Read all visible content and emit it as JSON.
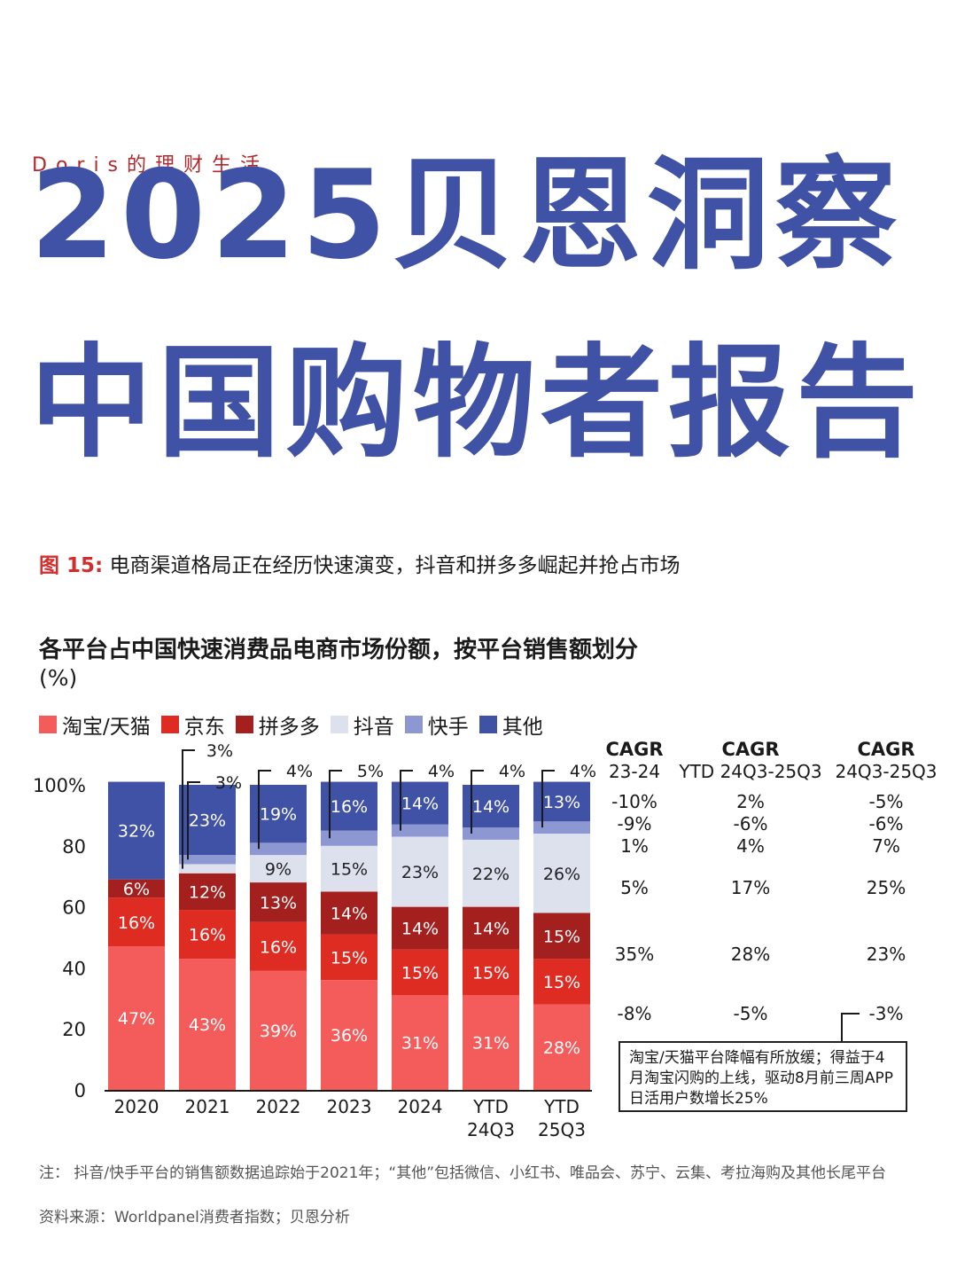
{
  "brand": "Doris的理财生活",
  "title_line1": "2025贝恩洞察",
  "title_line2": "中国购物者报告",
  "figure": {
    "number": "图 15:",
    "caption": "电商渠道格局正在经历快速演变，抖音和拼多多崛起并抢占市场"
  },
  "chart_data": {
    "type": "bar",
    "stacked": true,
    "title": "各平台占中国快速消费品电商市场份额，按平台销售额划分",
    "unit": "(%)",
    "categories": [
      "2020",
      "2021",
      "2022",
      "2023",
      "2024",
      "YTD\n24Q3",
      "YTD\n25Q3"
    ],
    "ylim": [
      0,
      100
    ],
    "yticks": [
      "0",
      "20",
      "40",
      "60",
      "80",
      "100%"
    ],
    "legend_position": "top-left",
    "series": [
      {
        "name": "淘宝/天猫",
        "color": "#f45b5b",
        "values": [
          47,
          43,
          39,
          36,
          31,
          31,
          28
        ],
        "labels": [
          "47%",
          "43%",
          "39%",
          "36%",
          "31%",
          "31%",
          "28%"
        ]
      },
      {
        "name": "京东",
        "color": "#de2c23",
        "values": [
          16,
          16,
          16,
          15,
          15,
          15,
          15
        ],
        "labels": [
          "16%",
          "16%",
          "16%",
          "15%",
          "15%",
          "15%",
          "15%"
        ]
      },
      {
        "name": "拼多多",
        "color": "#a3201f",
        "values": [
          6,
          12,
          13,
          14,
          14,
          14,
          15
        ],
        "labels": [
          "6%",
          "12%",
          "13%",
          "14%",
          "14%",
          "14%",
          "15%"
        ]
      },
      {
        "name": "抖音",
        "color": "#dde1ee",
        "values": [
          0,
          3,
          9,
          15,
          23,
          22,
          26
        ],
        "labels": [
          "",
          "",
          "9%",
          "15%",
          "23%",
          "22%",
          "26%"
        ]
      },
      {
        "name": "快手",
        "color": "#8d97d2",
        "values": [
          0,
          3,
          4,
          5,
          4,
          4,
          4
        ],
        "labels": [
          "",
          "",
          "",
          "",
          "",
          "",
          ""
        ]
      },
      {
        "name": "其他",
        "color": "#4052a6",
        "values": [
          32,
          23,
          19,
          16,
          14,
          14,
          13
        ],
        "labels": [
          "32%",
          "23%",
          "19%",
          "16%",
          "14%",
          "14%",
          "13%"
        ]
      }
    ],
    "kuaishou_callouts": [
      "",
      "3%",
      "4%",
      "5%",
      "4%",
      "4%",
      "4%"
    ],
    "douyin_2021_callout": "3%",
    "cagr": {
      "headers": [
        {
          "line1": "CAGR",
          "line2": "23-24"
        },
        {
          "line1": "CAGR",
          "line2": "YTD 24Q3-25Q3"
        },
        {
          "line1": "CAGR",
          "line2": "24Q3-25Q3"
        }
      ],
      "rows": [
        {
          "series": "其他",
          "values": [
            "-10%",
            "2%",
            "-5%"
          ]
        },
        {
          "series": "快手",
          "values": [
            "-9%",
            "-6%",
            "-6%"
          ]
        },
        {
          "series": "拼多多",
          "values": [
            "1%",
            "4%",
            "7%"
          ]
        },
        {
          "series": "京东",
          "values": [
            "5%",
            "17%",
            "25%"
          ]
        },
        {
          "series": "抖音",
          "values": [
            "35%",
            "28%",
            "23%"
          ]
        },
        {
          "series": "淘宝/天猫",
          "values": [
            "-8%",
            "-5%",
            "-3%"
          ]
        }
      ]
    },
    "annotation": "淘宝/天猫平台降幅有所放缓；得益于4月淘宝闪购的上线，驱动8月前三周APP日活用户数增长25%"
  },
  "note": "注：  抖音/快手平台的销售额数据追踪始于2021年；“其他”包括微信、小红书、唯品会、苏宁、云集、考拉海购及其他长尾平台",
  "source": "资料来源：Worldpanel消费者指数；贝恩分析"
}
